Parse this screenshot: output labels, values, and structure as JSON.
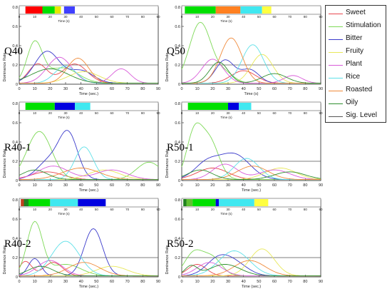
{
  "legend": {
    "items": [
      {
        "label": "Sweet",
        "color": "#e8474f"
      },
      {
        "label": "Stimulation",
        "color": "#7ed957"
      },
      {
        "label": "Bitter",
        "color": "#3a3acb"
      },
      {
        "label": "Fruity",
        "color": "#e8e85a"
      },
      {
        "label": "Plant",
        "color": "#d95bd9"
      },
      {
        "label": "Rice",
        "color": "#5ee0e8"
      },
      {
        "label": "Roasted",
        "color": "#f08a3a"
      },
      {
        "label": "Oily",
        "color": "#2f8f2f"
      },
      {
        "label": "Sig. Level",
        "color": "#555555"
      }
    ]
  },
  "chart_data": [
    {
      "type": "line",
      "title": "Q40",
      "xlabel": "Time (sec.)",
      "ylabel": "Dominance Rate",
      "xlim": [
        0,
        90
      ],
      "ylim": [
        0,
        0.8
      ],
      "xticks": [
        "0",
        "10",
        "20",
        "30",
        "40",
        "50",
        "60",
        "70",
        "80",
        "90"
      ],
      "yticks": [
        "0",
        "0.2",
        "0.4",
        "0.6",
        "0.8"
      ],
      "sig_level": 0.2,
      "band": {
        "xlabel": "Time (s)",
        "ticks": [
          "0",
          "10",
          "20",
          "30",
          "40",
          "50",
          "60",
          "70",
          "80",
          "90"
        ],
        "segments": [
          {
            "start": 4,
            "end": 15,
            "color": "#ff0000"
          },
          {
            "start": 15,
            "end": 23,
            "color": "#00e000"
          },
          {
            "start": 23,
            "end": 27,
            "color": "#e8e800"
          },
          {
            "start": 29,
            "end": 36,
            "color": "#4040ff"
          }
        ]
      },
      "series": [
        {
          "name": "Sweet",
          "color": "#e8474f",
          "peaks": [
            [
              12,
              0.2,
              6
            ],
            [
              36,
              0.2,
              8
            ]
          ]
        },
        {
          "name": "Stimulation",
          "color": "#7ed957",
          "peaks": [
            [
              10,
              0.41,
              5
            ],
            [
              28,
              0.16,
              10
            ]
          ]
        },
        {
          "name": "Bitter",
          "color": "#3a3acb",
          "peaks": [
            [
              18,
              0.33,
              8
            ],
            [
              40,
              0.13,
              8
            ]
          ]
        },
        {
          "name": "Fruity",
          "color": "#e8e85a",
          "peaks": [
            [
              42,
              0.12,
              10
            ]
          ]
        },
        {
          "name": "Plant",
          "color": "#d95bd9",
          "peaks": [
            [
              26,
              0.27,
              8
            ],
            [
              66,
              0.15,
              6
            ]
          ]
        },
        {
          "name": "Rice",
          "color": "#5ee0e8",
          "peaks": [
            [
              30,
              0.18,
              7
            ]
          ]
        },
        {
          "name": "Roasted",
          "color": "#f08a3a",
          "peaks": [
            [
              38,
              0.26,
              7
            ]
          ]
        },
        {
          "name": "Oily",
          "color": "#2f8f2f",
          "peaks": [
            [
              20,
              0.15,
              12
            ]
          ]
        }
      ]
    },
    {
      "type": "line",
      "title": "Q50",
      "xlabel": "Time (s)",
      "ylabel": "Dominance Rate",
      "xlim": [
        0,
        90
      ],
      "ylim": [
        0,
        0.8
      ],
      "xticks": [
        "0",
        "10",
        "20",
        "30",
        "40",
        "50",
        "60",
        "70",
        "80",
        "90"
      ],
      "yticks": [
        "0",
        "0.2",
        "0.4",
        "0.6",
        "0.8"
      ],
      "sig_level": 0.2,
      "band": {
        "xlabel": "Time (s)",
        "ticks": [
          "0",
          "10",
          "20",
          "30",
          "40",
          "50",
          "60",
          "70",
          "80",
          "90"
        ],
        "segments": [
          {
            "start": 2,
            "end": 22,
            "color": "#00e000"
          },
          {
            "start": 22,
            "end": 38,
            "color": "#ff8020"
          },
          {
            "start": 38,
            "end": 52,
            "color": "#40e8f0"
          },
          {
            "start": 52,
            "end": 58,
            "color": "#ffff40"
          }
        ]
      },
      "series": [
        {
          "name": "Sweet",
          "color": "#e8474f",
          "peaks": [
            [
              40,
              0.13,
              8
            ]
          ]
        },
        {
          "name": "Stimulation",
          "color": "#7ed957",
          "peaks": [
            [
              12,
              0.63,
              7
            ],
            [
              28,
              0.1,
              6
            ]
          ]
        },
        {
          "name": "Bitter",
          "color": "#3a3acb",
          "peaks": [
            [
              28,
              0.24,
              6
            ],
            [
              44,
              0.14,
              6
            ]
          ]
        },
        {
          "name": "Fruity",
          "color": "#e8e85a",
          "peaks": [
            [
              52,
              0.3,
              7
            ]
          ]
        },
        {
          "name": "Plant",
          "color": "#d95bd9",
          "peaks": [
            [
              20,
              0.25,
              7
            ],
            [
              72,
              0.08,
              6
            ]
          ]
        },
        {
          "name": "Rice",
          "color": "#5ee0e8",
          "peaks": [
            [
              46,
              0.4,
              7
            ]
          ]
        },
        {
          "name": "Roasted",
          "color": "#f08a3a",
          "peaks": [
            [
              32,
              0.47,
              7
            ]
          ]
        },
        {
          "name": "Oily",
          "color": "#2f8f2f",
          "peaks": [
            [
              24,
              0.22,
              6
            ],
            [
              60,
              0.1,
              8
            ]
          ]
        }
      ]
    },
    {
      "type": "line",
      "title": "R40-1",
      "xlabel": "Time (sec.)",
      "ylabel": "Dominance Rate",
      "xlim": [
        0,
        90
      ],
      "ylim": [
        0,
        0.8
      ],
      "xticks": [
        "0",
        "10",
        "20",
        "30",
        "40",
        "50",
        "60",
        "70",
        "80",
        "90"
      ],
      "yticks": [
        "0",
        "0.2",
        "0.4",
        "0.6",
        "0.8"
      ],
      "sig_level": 0.2,
      "band": {
        "xlabel": "Time (s)",
        "ticks": [
          "0",
          "10",
          "20",
          "30",
          "40",
          "50",
          "60",
          "70",
          "80",
          "90"
        ],
        "segments": [
          {
            "start": 4,
            "end": 23,
            "color": "#00e000"
          },
          {
            "start": 23,
            "end": 36,
            "color": "#0000e0"
          },
          {
            "start": 36,
            "end": 46,
            "color": "#40e8f0"
          }
        ]
      },
      "series": [
        {
          "name": "Sweet",
          "color": "#e8474f",
          "peaks": [
            [
              18,
              0.08,
              10
            ]
          ]
        },
        {
          "name": "Stimulation",
          "color": "#7ed957",
          "peaks": [
            [
              13,
              0.5,
              8
            ],
            [
              84,
              0.18,
              8
            ]
          ]
        },
        {
          "name": "Bitter",
          "color": "#3a3acb",
          "peaks": [
            [
              32,
              0.44,
              6
            ],
            [
              20,
              0.2,
              8
            ]
          ]
        },
        {
          "name": "Fruity",
          "color": "#e8e85a",
          "peaks": [
            [
              55,
              0.1,
              10
            ]
          ]
        },
        {
          "name": "Plant",
          "color": "#d95bd9",
          "peaks": [
            [
              22,
              0.14,
              10
            ],
            [
              60,
              0.1,
              10
            ]
          ]
        },
        {
          "name": "Rice",
          "color": "#5ee0e8",
          "peaks": [
            [
              42,
              0.34,
              6
            ]
          ]
        },
        {
          "name": "Roasted",
          "color": "#f08a3a",
          "peaks": [
            [
              40,
              0.12,
              12
            ]
          ]
        },
        {
          "name": "Oily",
          "color": "#2f8f2f",
          "peaks": [
            [
              10,
              0.1,
              8
            ]
          ]
        }
      ]
    },
    {
      "type": "line",
      "title": "R50-1",
      "xlabel": "Time (sec.)",
      "ylabel": "Dominance Rate",
      "xlim": [
        0,
        90
      ],
      "ylim": [
        0,
        0.8
      ],
      "xticks": [
        "0",
        "10",
        "20",
        "30",
        "40",
        "50",
        "60",
        "70",
        "80",
        "90"
      ],
      "yticks": [
        "0",
        "0.2",
        "0.4",
        "0.6",
        "0.8"
      ],
      "sig_level": 0.2,
      "band": {
        "xlabel": "Time (s)",
        "ticks": [
          "0",
          "10",
          "20",
          "30",
          "40",
          "50",
          "60",
          "70",
          "80",
          "90"
        ],
        "segments": [
          {
            "start": 4,
            "end": 30,
            "color": "#00e000"
          },
          {
            "start": 30,
            "end": 37,
            "color": "#0000e0"
          },
          {
            "start": 37,
            "end": 45,
            "color": "#40e8f0"
          }
        ]
      },
      "series": [
        {
          "name": "Sweet",
          "color": "#e8474f",
          "peaks": [
            [
              20,
              0.12,
              10
            ]
          ]
        },
        {
          "name": "Stimulation",
          "color": "#7ed957",
          "peaks": [
            [
              8,
              0.46,
              5
            ],
            [
              18,
              0.4,
              6
            ]
          ]
        },
        {
          "name": "Bitter",
          "color": "#3a3acb",
          "peaks": [
            [
              34,
              0.26,
              10
            ],
            [
              16,
              0.16,
              8
            ]
          ]
        },
        {
          "name": "Fruity",
          "color": "#e8e85a",
          "peaks": [
            [
              64,
              0.12,
              10
            ]
          ]
        },
        {
          "name": "Plant",
          "color": "#d95bd9",
          "peaks": [
            [
              28,
              0.16,
              8
            ],
            [
              60,
              0.1,
              10
            ]
          ]
        },
        {
          "name": "Rice",
          "color": "#5ee0e8",
          "peaks": [
            [
              42,
              0.22,
              8
            ]
          ]
        },
        {
          "name": "Roasted",
          "color": "#f08a3a",
          "peaks": [
            [
              46,
              0.14,
              10
            ]
          ]
        },
        {
          "name": "Oily",
          "color": "#2f8f2f",
          "peaks": [
            [
              12,
              0.1,
              8
            ],
            [
              70,
              0.08,
              10
            ]
          ]
        }
      ]
    },
    {
      "type": "line",
      "title": "R40-2",
      "xlabel": "Time (sec.)",
      "ylabel": "Dominance Rate",
      "xlim": [
        0,
        90
      ],
      "ylim": [
        0,
        0.8
      ],
      "xticks": [
        "0",
        "10",
        "20",
        "30",
        "40",
        "50",
        "60",
        "70",
        "80",
        "90"
      ],
      "yticks": [
        "0",
        "0.2",
        "0.4",
        "0.6",
        "0.8"
      ],
      "sig_level": 0.2,
      "band": {
        "xlabel": "Time (s)",
        "ticks": [
          "0",
          "10",
          "20",
          "30",
          "40",
          "50",
          "60",
          "70",
          "80",
          "90"
        ],
        "segments": [
          {
            "start": 1,
            "end": 3,
            "color": "#c04020"
          },
          {
            "start": 3,
            "end": 6,
            "color": "#208020"
          },
          {
            "start": 6,
            "end": 20,
            "color": "#00e000"
          },
          {
            "start": 20,
            "end": 38,
            "color": "#40e8f0"
          },
          {
            "start": 38,
            "end": 56,
            "color": "#0000e0"
          }
        ]
      },
      "series": [
        {
          "name": "Sweet",
          "color": "#e8474f",
          "peaks": [
            [
              4,
              0.15,
              4
            ],
            [
              22,
              0.14,
              6
            ]
          ]
        },
        {
          "name": "Stimulation",
          "color": "#7ed957",
          "peaks": [
            [
              10,
              0.55,
              5
            ],
            [
              30,
              0.12,
              10
            ]
          ]
        },
        {
          "name": "Bitter",
          "color": "#3a3acb",
          "peaks": [
            [
              48,
              0.49,
              6
            ],
            [
              10,
              0.18,
              4
            ]
          ]
        },
        {
          "name": "Fruity",
          "color": "#e8e85a",
          "peaks": [
            [
              60,
              0.1,
              10
            ]
          ]
        },
        {
          "name": "Plant",
          "color": "#d95bd9",
          "peaks": [
            [
              20,
              0.16,
              8
            ]
          ]
        },
        {
          "name": "Rice",
          "color": "#5ee0e8",
          "peaks": [
            [
              30,
              0.36,
              9
            ]
          ]
        },
        {
          "name": "Roasted",
          "color": "#f08a3a",
          "peaks": [
            [
              42,
              0.14,
              10
            ]
          ]
        },
        {
          "name": "Oily",
          "color": "#2f8f2f",
          "peaks": [
            [
              14,
              0.1,
              8
            ]
          ]
        }
      ]
    },
    {
      "type": "line",
      "title": "R50-2",
      "xlabel": "Time (sec.)",
      "ylabel": "Dominance Rate",
      "xlim": [
        0,
        90
      ],
      "ylim": [
        0,
        0.8
      ],
      "xticks": [
        "0",
        "10",
        "20",
        "30",
        "40",
        "50",
        "60",
        "70",
        "80",
        "90"
      ],
      "yticks": [
        "0",
        "0.2",
        "0.4",
        "0.6",
        "0.8"
      ],
      "sig_level": 0.2,
      "band": {
        "xlabel": "Time (s)",
        "ticks": [
          "0",
          "10",
          "20",
          "30",
          "40",
          "50",
          "60",
          "70",
          "80",
          "90"
        ],
        "segments": [
          {
            "start": 1,
            "end": 3,
            "color": "#208020"
          },
          {
            "start": 3,
            "end": 7,
            "color": "#60c030"
          },
          {
            "start": 7,
            "end": 22,
            "color": "#00e000"
          },
          {
            "start": 22,
            "end": 24,
            "color": "#0000e0"
          },
          {
            "start": 24,
            "end": 47,
            "color": "#40e8f0"
          },
          {
            "start": 47,
            "end": 56,
            "color": "#ffff40"
          }
        ]
      },
      "series": [
        {
          "name": "Sweet",
          "color": "#e8474f",
          "peaks": [
            [
              10,
              0.12,
              6
            ]
          ]
        },
        {
          "name": "Stimulation",
          "color": "#7ed957",
          "peaks": [
            [
              8,
              0.24,
              6
            ],
            [
              20,
              0.18,
              6
            ]
          ]
        },
        {
          "name": "Bitter",
          "color": "#3a3acb",
          "peaks": [
            [
              24,
              0.18,
              8
            ],
            [
              36,
              0.1,
              8
            ]
          ]
        },
        {
          "name": "Fruity",
          "color": "#e8e85a",
          "peaks": [
            [
              52,
              0.28,
              8
            ]
          ]
        },
        {
          "name": "Plant",
          "color": "#d95bd9",
          "peaks": [
            [
              18,
              0.14,
              8
            ]
          ]
        },
        {
          "name": "Rice",
          "color": "#5ee0e8",
          "peaks": [
            [
              34,
              0.26,
              10
            ]
          ]
        },
        {
          "name": "Roasted",
          "color": "#f08a3a",
          "peaks": [
            [
              44,
              0.16,
              10
            ]
          ]
        },
        {
          "name": "Oily",
          "color": "#2f8f2f",
          "peaks": [
            [
              28,
              0.12,
              10
            ],
            [
              6,
              0.1,
              4
            ]
          ]
        }
      ]
    }
  ]
}
